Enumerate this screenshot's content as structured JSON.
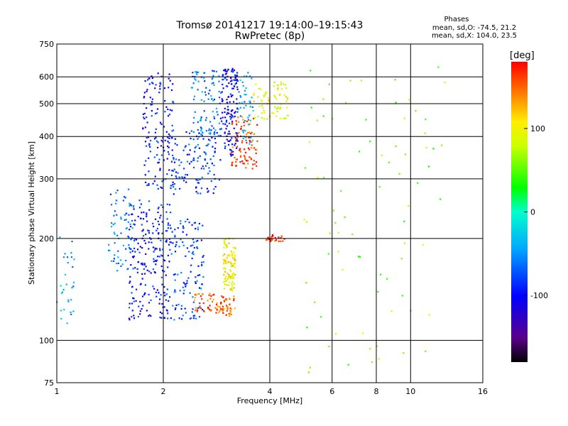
{
  "chart_data": {
    "type": "scatter",
    "title": "Tromsø 20141217 19:14:00–19:15:43",
    "subtitle": "RwPretec (8p)",
    "xlabel": "Frequency [MHz]",
    "ylabel": "Stationary phase Virtual Height [km]",
    "x_scale": "log",
    "y_scale": "log",
    "xlim": [
      1,
      16
    ],
    "ylim": [
      75,
      750
    ],
    "x_ticks": [
      "1",
      "2",
      "4",
      "6",
      "8",
      "10",
      "16"
    ],
    "y_ticks": [
      "75",
      "100",
      "200",
      "300",
      "400",
      "500",
      "600",
      "750"
    ],
    "grid": true,
    "stats": {
      "heading": "Phases",
      "line_o": "mean, sd,O: -74.5, 21.2",
      "line_x": "mean, sd,X: 104.0, 23.5"
    },
    "colorbar": {
      "label": "[deg]",
      "ticks": [
        "100",
        "0",
        "-100"
      ],
      "tick_values": [
        100,
        0,
        -100
      ],
      "range": [
        -180,
        180
      ],
      "colormap": "rainbow"
    },
    "clusters": [
      {
        "x": [
          1.0,
          1.12
        ],
        "y": [
          105,
          220
        ],
        "phase": -40,
        "count": 30
      },
      {
        "x": [
          1.4,
          1.65
        ],
        "y": [
          160,
          280
        ],
        "phase": -60,
        "count": 70
      },
      {
        "x": [
          1.6,
          2.1
        ],
        "y": [
          115,
          260
        ],
        "phase": -95,
        "count": 220
      },
      {
        "x": [
          1.75,
          2.15
        ],
        "y": [
          280,
          620
        ],
        "phase": -95,
        "count": 140
      },
      {
        "x": [
          2.1,
          2.6
        ],
        "y": [
          115,
          230
        ],
        "phase": -75,
        "count": 120
      },
      {
        "x": [
          2.1,
          2.9
        ],
        "y": [
          270,
          420
        ],
        "phase": -80,
        "count": 130
      },
      {
        "x": [
          2.4,
          2.9
        ],
        "y": [
          400,
          630
        ],
        "phase": -60,
        "count": 90
      },
      {
        "x": [
          2.9,
          3.25
        ],
        "y": [
          350,
          640
        ],
        "phase": -100,
        "count": 150
      },
      {
        "x": [
          3.25,
          3.6
        ],
        "y": [
          380,
          620
        ],
        "phase": -40,
        "count": 50
      },
      {
        "x": [
          2.45,
          2.95
        ],
        "y": [
          120,
          138
        ],
        "phase": 150,
        "count": 50
      },
      {
        "x": [
          2.9,
          3.2
        ],
        "y": [
          118,
          135
        ],
        "phase": 150,
        "count": 40
      },
      {
        "x": [
          2.95,
          3.2
        ],
        "y": [
          140,
          200
        ],
        "phase": 100,
        "count": 110
      },
      {
        "x": [
          3.1,
          3.7
        ],
        "y": [
          320,
          460
        ],
        "phase": 160,
        "count": 90
      },
      {
        "x": [
          3.6,
          4.5
        ],
        "y": [
          450,
          580
        ],
        "phase": 95,
        "count": 70
      },
      {
        "x": [
          3.9,
          4.4
        ],
        "y": [
          196,
          206
        ],
        "phase": 170,
        "count": 25
      },
      {
        "x": [
          5.0,
          12.5
        ],
        "y": [
          80,
          660
        ],
        "phase": 60,
        "count": 80
      }
    ]
  }
}
